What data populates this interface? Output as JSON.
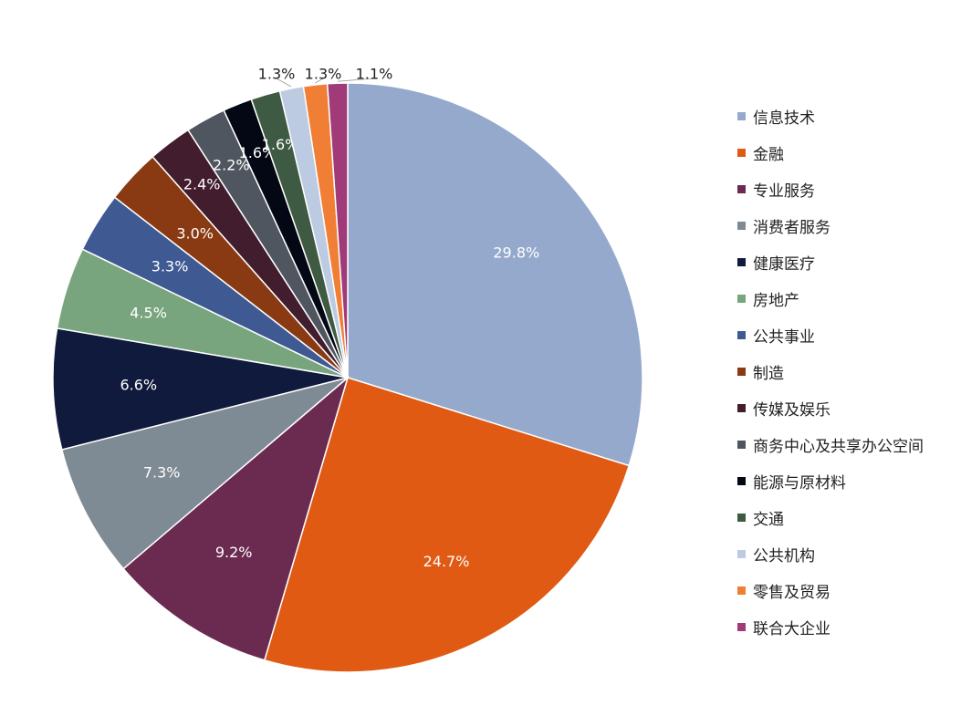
{
  "chart_data": {
    "type": "pie",
    "slices": [
      {
        "label": "信息技术",
        "value": 29.8,
        "display": "29.8%",
        "color": "#95a9cc",
        "label_color": "#ffffff"
      },
      {
        "label": "金融",
        "value": 24.7,
        "display": "24.7%",
        "color": "#e05a14",
        "label_color": "#ffffff"
      },
      {
        "label": "专业服务",
        "value": 9.2,
        "display": "9.2%",
        "color": "#6b2a4f",
        "label_color": "#ffffff"
      },
      {
        "label": "消费者服务",
        "value": 7.3,
        "display": "7.3%",
        "color": "#7f8b94",
        "label_color": "#ffffff"
      },
      {
        "label": "健康医疗",
        "value": 6.6,
        "display": "6.6%",
        "color": "#0f1a3c",
        "label_color": "#ffffff"
      },
      {
        "label": "房地产",
        "value": 4.5,
        "display": "4.5%",
        "color": "#78a57e",
        "label_color": "#ffffff"
      },
      {
        "label": "公共事业",
        "value": 3.3,
        "display": "3.3%",
        "color": "#3f5a93",
        "label_color": "#ffffff"
      },
      {
        "label": "制造",
        "value": 3.0,
        "display": "3.0%",
        "color": "#8a3a13",
        "label_color": "#ffffff"
      },
      {
        "label": "传媒及娱乐",
        "value": 2.4,
        "display": "2.4%",
        "color": "#421d2e",
        "label_color": "#ffffff"
      },
      {
        "label": "商务中心及共享办公空间",
        "value": 2.2,
        "display": "2.2%",
        "color": "#4f565f",
        "label_color": "#ffffff"
      },
      {
        "label": "能源与原材料",
        "value": 1.6,
        "display": "1.6%",
        "color": "#040815",
        "label_color": "#ffffff"
      },
      {
        "label": "交通",
        "value": 1.6,
        "display": "1.6%",
        "color": "#3f5a42",
        "label_color": "#ffffff"
      },
      {
        "label": "公共机构",
        "value": 1.3,
        "display": "1.3%",
        "color": "#bccae2",
        "label_color": "#222222"
      },
      {
        "label": "零售及贸易",
        "value": 1.3,
        "display": "1.3%",
        "color": "#f07f35",
        "label_color": "#222222"
      },
      {
        "label": "联合大企业",
        "value": 1.1,
        "display": "1.1%",
        "color": "#a03a79",
        "label_color": "#222222"
      }
    ],
    "legend_position": "right",
    "start": "12 o'clock",
    "direction": "clockwise"
  }
}
